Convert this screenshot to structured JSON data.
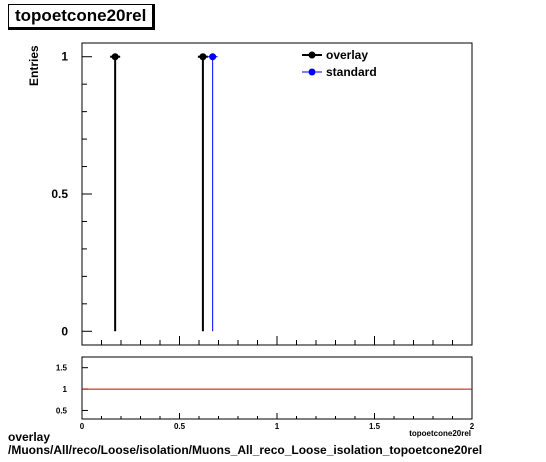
{
  "title": "topoetcone20rel",
  "footer": {
    "line1": "overlay",
    "line2": "/Muons/All/reco/Loose/isolation/Muons_All_reco_Loose_isolation_topoetcone20rel"
  },
  "colors": {
    "overlay": "#000000",
    "standard": "#0000ff",
    "ratio_line": "#cc0000"
  },
  "chart_data": [
    {
      "type": "scatter",
      "title": "topoetcone20rel",
      "xlabel": "",
      "ylabel": "Entries",
      "xlim": [
        0,
        2
      ],
      "ylim": [
        -0.05,
        1.05
      ],
      "yticks": [
        0,
        0.5,
        1
      ],
      "ytick_labels": [
        "0",
        "0.5",
        "1"
      ],
      "legend": {
        "position": "top-right",
        "entries": [
          "overlay",
          "standard"
        ]
      },
      "series": [
        {
          "name": "overlay",
          "style": "markers+vertical-lines",
          "x": [
            0.17,
            0.62
          ],
          "y": [
            1,
            1
          ]
        },
        {
          "name": "standard",
          "style": "markers+vertical-lines",
          "x": [
            0.67
          ],
          "y": [
            1
          ]
        }
      ]
    },
    {
      "type": "line",
      "title": "",
      "xlabel": "topoetcone20rel",
      "ylabel": "",
      "xlim": [
        0,
        2
      ],
      "ylim": [
        0.3,
        1.75
      ],
      "xticks": [
        0,
        0.5,
        1,
        1.5,
        2
      ],
      "xtick_labels": [
        "0",
        "0.5",
        "1",
        "1.5",
        "2"
      ],
      "yticks": [
        0.5,
        1,
        1.5
      ],
      "ytick_labels": [
        "0.5",
        "1",
        "1.5"
      ],
      "series": [
        {
          "x": [
            0,
            2
          ],
          "y": [
            1,
            1
          ]
        }
      ]
    }
  ]
}
